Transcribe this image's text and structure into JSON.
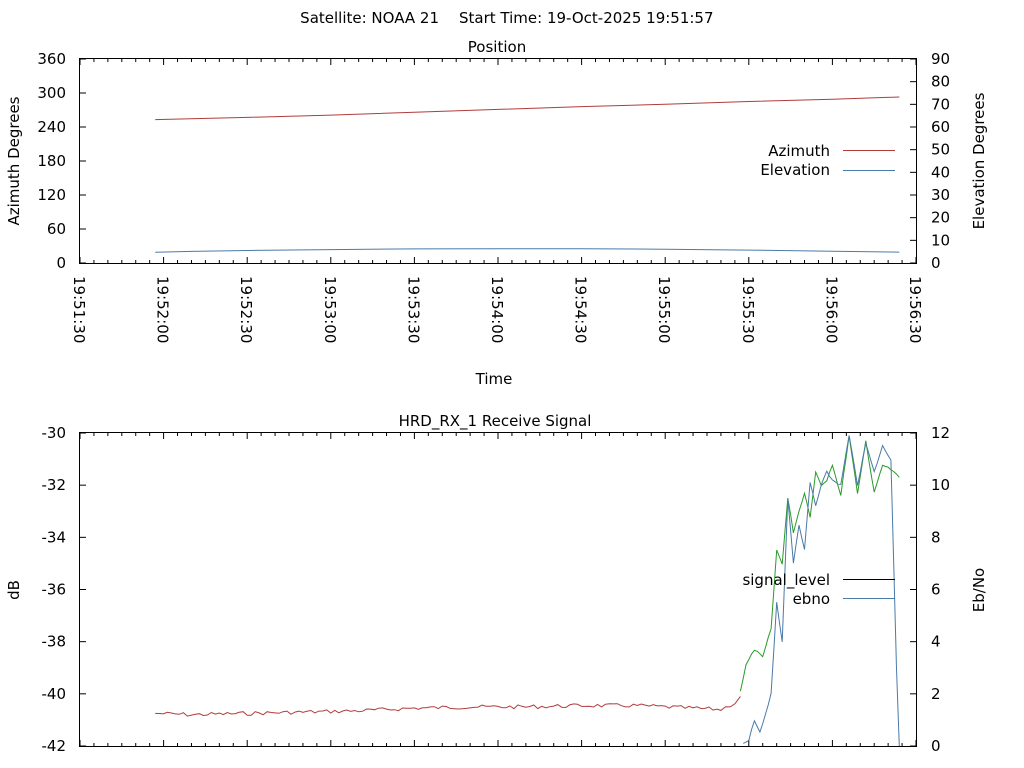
{
  "header": {
    "satellite": "Satellite: NOAA 21",
    "start_time": "Start Time: 19-Oct-2025 19:51:57"
  },
  "chart_data": [
    {
      "type": "line",
      "title": "Position",
      "xlabel": "Time",
      "ylabel": "Azimuth Degrees",
      "y2label": "Elevation Degrees",
      "xlim": [
        "19:51:30",
        "19:56:30"
      ],
      "ylim": [
        0,
        360
      ],
      "y2lim": [
        0,
        90
      ],
      "x_ticks": [
        "19:51:30",
        "19:52:00",
        "19:52:30",
        "19:53:00",
        "19:53:30",
        "19:54:00",
        "19:54:30",
        "19:55:00",
        "19:55:30",
        "19:56:00",
        "19:56:30"
      ],
      "y_ticks": [
        "0",
        "60",
        "120",
        "180",
        "240",
        "300",
        "360"
      ],
      "y2_ticks": [
        "0",
        "10",
        "20",
        "30",
        "40",
        "50",
        "60",
        "70",
        "80",
        "90"
      ],
      "legend_position": "right",
      "series": [
        {
          "name": "Azimuth",
          "axis": "y",
          "color": "#b03c3c",
          "x": [
            "19:51:57",
            "19:52:30",
            "19:53:00",
            "19:53:30",
            "19:54:00",
            "19:54:30",
            "19:55:00",
            "19:55:30",
            "19:56:00",
            "19:56:24"
          ],
          "values": [
            253,
            257,
            261,
            266,
            271,
            276,
            280,
            285,
            289,
            293
          ]
        },
        {
          "name": "Elevation",
          "axis": "y2",
          "color": "#4a7aa8",
          "x": [
            "19:51:57",
            "19:52:10",
            "19:52:30",
            "19:53:00",
            "19:53:30",
            "19:54:00",
            "19:54:30",
            "19:55:00",
            "19:55:30",
            "19:56:00",
            "19:56:24"
          ],
          "values": [
            4.7,
            5.1,
            5.5,
            5.9,
            6.2,
            6.3,
            6.3,
            6.1,
            5.7,
            5.2,
            4.8
          ]
        }
      ]
    },
    {
      "type": "line",
      "title": "HRD_RX_1 Receive Signal",
      "xlabel": "",
      "ylabel": "dB",
      "y2label": "Eb/No",
      "xlim": [
        "19:51:30",
        "19:56:30"
      ],
      "ylim": [
        -42,
        -30
      ],
      "y2lim": [
        0,
        12
      ],
      "y_ticks": [
        "-30",
        "-32",
        "-34",
        "-36",
        "-38",
        "-40",
        "-42"
      ],
      "y2_ticks": [
        "12",
        "10",
        "8",
        "6",
        "4",
        "2",
        "0"
      ],
      "legend_position": "right",
      "legend": [
        {
          "name": "signal_level",
          "color": "#000000"
        },
        {
          "name": "ebno",
          "color": "#4a7aa8"
        }
      ],
      "series": [
        {
          "name": "signal_level",
          "axis": "y",
          "segments": [
            {
              "color": "#b03c3c",
              "x": [
                "19:51:57",
                "19:52:10",
                "19:52:30",
                "19:52:50",
                "19:53:10",
                "19:53:30",
                "19:53:50",
                "19:54:10",
                "19:54:30",
                "19:54:50",
                "19:55:10",
                "19:55:20",
                "19:55:25",
                "19:55:27"
              ],
              "values": [
                -40.75,
                -40.8,
                -40.75,
                -40.7,
                -40.65,
                -40.55,
                -40.5,
                -40.5,
                -40.45,
                -40.45,
                -40.55,
                -40.6,
                -40.35,
                -40.1
              ]
            },
            {
              "color": "#2a9a2a",
              "x": [
                "19:55:27",
                "19:55:29",
                "19:55:32",
                "19:55:35",
                "19:55:38",
                "19:55:40",
                "19:55:42",
                "19:55:44",
                "19:55:46",
                "19:55:48",
                "19:55:50",
                "19:55:52",
                "19:55:54",
                "19:55:56",
                "19:55:58",
                "19:56:00",
                "19:56:03",
                "19:56:06",
                "19:56:09",
                "19:56:12",
                "19:56:15",
                "19:56:18",
                "19:56:21",
                "19:56:24"
              ],
              "values": [
                -39.9,
                -38.9,
                -38.3,
                -38.6,
                -37.5,
                -34.5,
                -35.0,
                -32.5,
                -33.8,
                -33.0,
                -32.3,
                -33.2,
                -31.5,
                -32.0,
                -31.8,
                -31.2,
                -32.4,
                -30.1,
                -32.3,
                -30.3,
                -32.3,
                -31.2,
                -31.4,
                -31.7
              ]
            }
          ]
        },
        {
          "name": "ebno",
          "axis": "y2",
          "color": "#4a7aa8",
          "x": [
            "19:55:28",
            "19:55:30",
            "19:55:32",
            "19:55:34",
            "19:55:36",
            "19:55:38",
            "19:55:40",
            "19:55:42",
            "19:55:44",
            "19:55:46",
            "19:55:48",
            "19:55:50",
            "19:55:52",
            "19:55:54",
            "19:55:56",
            "19:55:58",
            "19:56:00",
            "19:56:03",
            "19:56:06",
            "19:56:09",
            "19:56:12",
            "19:56:15",
            "19:56:18",
            "19:56:21",
            "19:56:23",
            "19:56:24"
          ],
          "values": [
            0.1,
            0.2,
            1.0,
            0.5,
            1.2,
            2.0,
            5.5,
            4.0,
            9.5,
            7.0,
            8.5,
            7.5,
            10.1,
            9.2,
            10.0,
            10.5,
            10.2,
            10.0,
            11.9,
            10.0,
            11.6,
            10.5,
            11.5,
            11.0,
            3.0,
            0.0
          ]
        }
      ]
    }
  ]
}
